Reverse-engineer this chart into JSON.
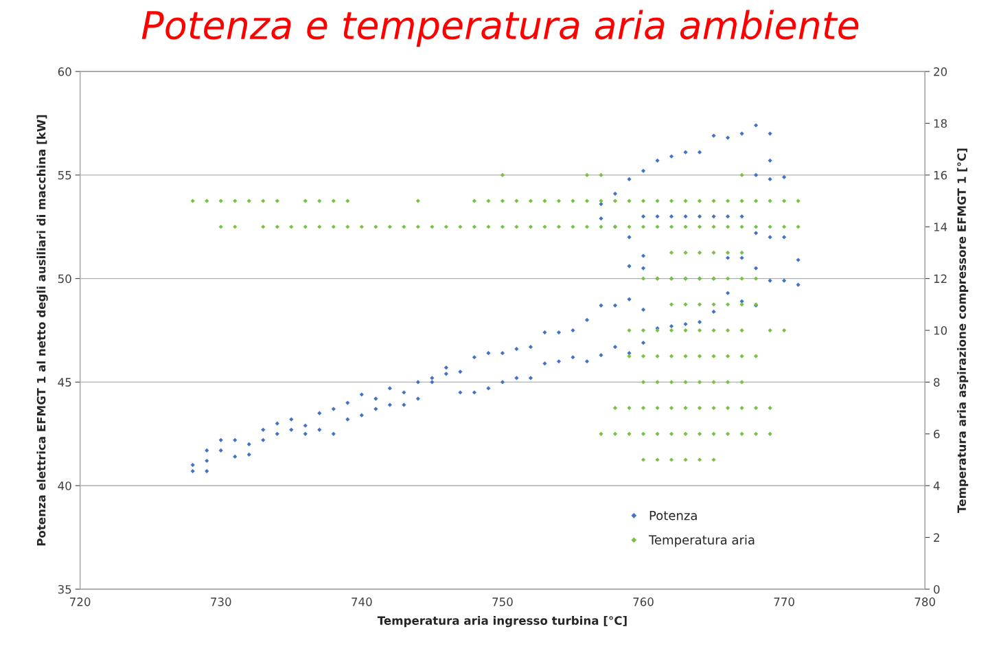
{
  "chart_data": {
    "type": "scatter",
    "title": "Potenza e temperatura aria ambiente",
    "xlabel": "Temperatura aria ingresso turbina [°C]",
    "ylabel": "Potenza elettrica EFMGT 1 al netto degli ausiliari di macchina [kW]",
    "y2label": "Temperatura aria aspirazione compressore EFMGT 1 [°C]",
    "xlim": [
      720,
      780
    ],
    "xticks": [
      720,
      730,
      740,
      750,
      760,
      770,
      780
    ],
    "ylim": [
      35,
      60
    ],
    "yticks": [
      35,
      40,
      45,
      50,
      55,
      60
    ],
    "y2lim": [
      0,
      20
    ],
    "y2ticks": [
      0,
      2,
      4,
      6,
      8,
      10,
      12,
      14,
      16,
      18,
      20
    ],
    "grid": "y",
    "legend": "bottom",
    "marker": "diamond",
    "series": [
      {
        "name": "Potenza",
        "color": "#4472c4",
        "x": [
          728,
          728,
          729,
          729,
          729,
          730,
          730,
          731,
          731,
          732,
          732,
          733,
          733,
          734,
          734,
          735,
          735,
          736,
          736,
          737,
          737,
          738,
          738,
          739,
          739,
          740,
          740,
          741,
          741,
          742,
          742,
          743,
          743,
          744,
          744,
          745,
          745,
          746,
          746,
          747,
          747,
          748,
          748,
          749,
          749,
          750,
          750,
          751,
          751,
          752,
          752,
          753,
          753,
          754,
          754,
          755,
          755,
          756,
          756,
          757,
          757,
          757,
          757,
          758,
          758,
          758,
          758,
          759,
          759,
          759,
          759,
          759,
          760,
          760,
          760,
          760,
          760,
          760,
          761,
          761,
          761,
          761,
          762,
          762,
          762,
          762,
          763,
          763,
          763,
          763,
          764,
          764,
          764,
          764,
          765,
          765,
          765,
          765,
          766,
          766,
          766,
          766,
          767,
          767,
          767,
          767,
          768,
          768,
          768,
          768,
          768,
          769,
          769,
          769,
          769,
          769,
          770,
          770,
          770,
          771,
          771
        ],
        "values": [
          41.0,
          40.7,
          41.7,
          41.2,
          40.7,
          42.2,
          41.7,
          42.2,
          41.4,
          42.0,
          41.5,
          42.7,
          42.2,
          43.0,
          42.5,
          43.2,
          42.7,
          42.9,
          42.5,
          43.5,
          42.7,
          43.7,
          42.5,
          44.0,
          43.2,
          44.4,
          43.4,
          44.2,
          43.7,
          44.7,
          43.9,
          44.5,
          43.9,
          45.0,
          44.2,
          45.2,
          45.0,
          45.7,
          45.4,
          45.5,
          44.5,
          46.2,
          44.5,
          46.4,
          44.7,
          46.4,
          45.0,
          46.6,
          45.2,
          46.7,
          45.2,
          47.4,
          45.9,
          47.4,
          46.0,
          47.5,
          46.2,
          48.0,
          46.0,
          53.6,
          52.9,
          48.7,
          46.3,
          54.1,
          52.5,
          48.7,
          46.7,
          54.8,
          52.0,
          50.6,
          49.0,
          46.4,
          55.2,
          53.0,
          51.1,
          50.5,
          48.5,
          46.9,
          55.7,
          53.0,
          50.0,
          47.6,
          55.9,
          53.0,
          50.0,
          47.7,
          56.1,
          53.0,
          50.0,
          47.8,
          56.1,
          53.0,
          50.0,
          47.9,
          56.9,
          53.0,
          50.0,
          48.4,
          56.8,
          53.0,
          51.0,
          49.3,
          57.0,
          53.0,
          51.0,
          48.9,
          57.4,
          55.0,
          52.2,
          50.5,
          48.7,
          57.0,
          55.7,
          54.8,
          52.0,
          49.9,
          54.9,
          52.0,
          49.9,
          50.9,
          49.7
        ]
      },
      {
        "name": "Temperatura aria",
        "color": "#7ac143",
        "axis": "y2",
        "x": [
          728,
          729,
          730,
          731,
          732,
          733,
          734,
          736,
          737,
          738,
          739,
          744,
          748,
          749,
          750,
          751,
          752,
          753,
          754,
          755,
          756,
          757,
          758,
          759,
          760,
          761,
          762,
          763,
          764,
          765,
          766,
          767,
          768,
          769,
          770,
          771,
          730,
          731,
          733,
          734,
          735,
          736,
          737,
          738,
          739,
          740,
          741,
          742,
          743,
          744,
          745,
          746,
          747,
          748,
          749,
          750,
          751,
          752,
          753,
          754,
          755,
          756,
          757,
          758,
          759,
          760,
          761,
          762,
          763,
          764,
          765,
          766,
          767,
          768,
          769,
          770,
          771,
          750,
          756,
          757,
          767,
          762,
          763,
          764,
          765,
          766,
          767,
          760,
          761,
          762,
          763,
          764,
          765,
          766,
          767,
          768,
          762,
          763,
          764,
          765,
          766,
          767,
          768,
          759,
          760,
          761,
          762,
          763,
          764,
          765,
          766,
          767,
          769,
          770,
          759,
          760,
          761,
          762,
          763,
          764,
          765,
          766,
          767,
          768,
          760,
          761,
          762,
          763,
          764,
          765,
          766,
          767,
          758,
          759,
          760,
          761,
          762,
          763,
          764,
          765,
          766,
          767,
          768,
          769,
          757,
          758,
          759,
          760,
          761,
          762,
          763,
          764,
          765,
          766,
          767,
          768,
          769,
          760,
          761,
          762,
          763,
          764,
          765
        ],
        "values": [
          15,
          15,
          15,
          15,
          15,
          15,
          15,
          15,
          15,
          15,
          15,
          15,
          15,
          15,
          15,
          15,
          15,
          15,
          15,
          15,
          15,
          15,
          15,
          15,
          15,
          15,
          15,
          15,
          15,
          15,
          15,
          15,
          15,
          15,
          15,
          15,
          14,
          14,
          14,
          14,
          14,
          14,
          14,
          14,
          14,
          14,
          14,
          14,
          14,
          14,
          14,
          14,
          14,
          14,
          14,
          14,
          14,
          14,
          14,
          14,
          14,
          14,
          14,
          14,
          14,
          14,
          14,
          14,
          14,
          14,
          14,
          14,
          14,
          14,
          14,
          14,
          14,
          16,
          16,
          16,
          16,
          13,
          13,
          13,
          13,
          13,
          13,
          12,
          12,
          12,
          12,
          12,
          12,
          12,
          12,
          12,
          11,
          11,
          11,
          11,
          11,
          11,
          11,
          10,
          10,
          10,
          10,
          10,
          10,
          10,
          10,
          10,
          10,
          10,
          9,
          9,
          9,
          9,
          9,
          9,
          9,
          9,
          9,
          9,
          8,
          8,
          8,
          8,
          8,
          8,
          8,
          8,
          7,
          7,
          7,
          7,
          7,
          7,
          7,
          7,
          7,
          7,
          7,
          7,
          6,
          6,
          6,
          6,
          6,
          6,
          6,
          6,
          6,
          6,
          6,
          6,
          6,
          5,
          5,
          5,
          5,
          5,
          5
        ]
      }
    ]
  }
}
